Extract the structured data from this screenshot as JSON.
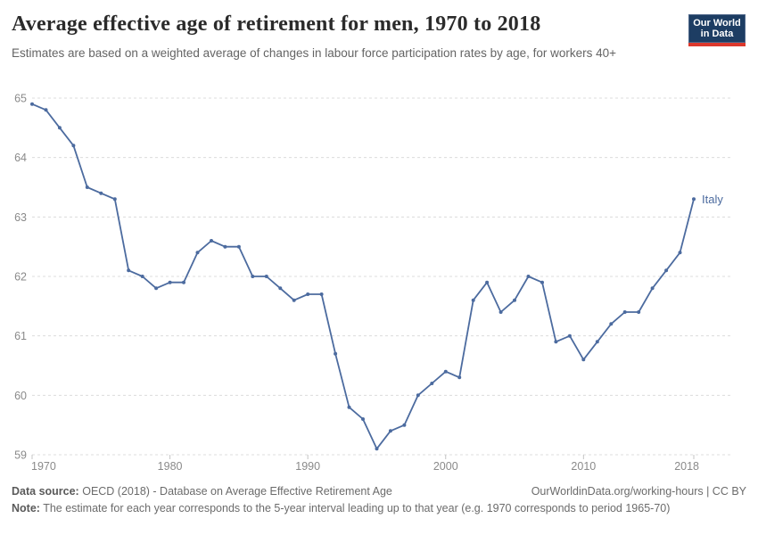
{
  "header": {
    "title": "Average effective age of retirement for men, 1970 to 2018",
    "subtitle": "Estimates are based on a weighted average of changes in labour force participation rates by age, for workers 40+",
    "logo": {
      "line1": "Our World",
      "line2": "in Data",
      "bg_color": "#1d3d63",
      "stripe_color": "#dc382c"
    }
  },
  "chart_data": {
    "type": "line",
    "title": "Average effective age of retirement for men, 1970 to 2018",
    "xlabel": "",
    "ylabel": "",
    "xlim": [
      1970,
      2018
    ],
    "ylim": [
      59,
      65
    ],
    "x_ticks": [
      1970,
      1980,
      1990,
      2000,
      2010,
      2018
    ],
    "y_ticks": [
      59,
      60,
      61,
      62,
      63,
      64,
      65
    ],
    "grid": "horizontal-dashed",
    "grid_color": "#dcdcdc",
    "legend_position": "end-of-line-label",
    "x": [
      1970,
      1971,
      1972,
      1973,
      1974,
      1975,
      1976,
      1977,
      1978,
      1979,
      1980,
      1981,
      1982,
      1983,
      1984,
      1985,
      1986,
      1987,
      1988,
      1989,
      1990,
      1991,
      1992,
      1993,
      1994,
      1995,
      1996,
      1997,
      1998,
      1999,
      2000,
      2001,
      2002,
      2003,
      2004,
      2005,
      2006,
      2007,
      2008,
      2009,
      2010,
      2011,
      2012,
      2013,
      2014,
      2015,
      2016,
      2017,
      2018
    ],
    "series": [
      {
        "name": "Italy",
        "color": "#4c6b9f",
        "values": [
          64.9,
          64.8,
          64.5,
          64.2,
          63.5,
          63.4,
          63.3,
          62.1,
          62.0,
          61.8,
          61.9,
          61.9,
          62.4,
          62.6,
          62.5,
          62.5,
          62.0,
          62.0,
          61.8,
          61.6,
          61.7,
          61.7,
          60.7,
          59.8,
          59.6,
          59.1,
          59.4,
          59.5,
          60.0,
          60.2,
          60.4,
          60.3,
          61.6,
          61.9,
          61.4,
          61.6,
          62.0,
          61.9,
          60.9,
          61.0,
          60.6,
          60.9,
          61.2,
          61.4,
          61.4,
          61.8,
          62.1,
          62.4,
          63.3
        ]
      }
    ]
  },
  "footer": {
    "datasource_label": "Data source:",
    "datasource_text": "OECD (2018) - Database on Average Effective Retirement Age",
    "credit": "OurWorldinData.org/working-hours | CC BY",
    "note_label": "Note:",
    "note_text": "The estimate for each year corresponds to the 5-year interval leading up to that year (e.g. 1970 corresponds to period 1965-70)"
  }
}
